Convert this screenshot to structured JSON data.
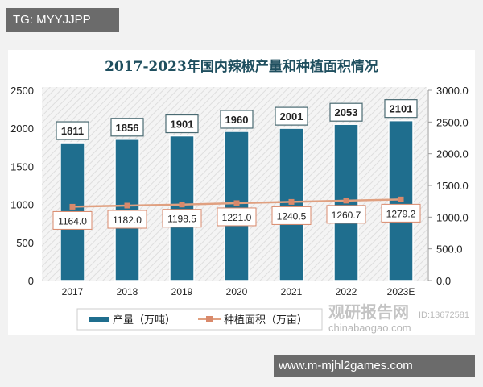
{
  "overlay": {
    "tag": "TG: MYYJJPP",
    "site": "www.m-mjhl2games.com"
  },
  "watermark": {
    "brand": "观研报告网",
    "domain": "chinabaogao.com",
    "id": "ID:13672581"
  },
  "colors": {
    "bar": "#1f6e8e",
    "line": "#e0a080",
    "marker": "#d9896b",
    "title": "#1f4f5f"
  },
  "chart_data": {
    "type": "bar",
    "title": "2017-2023年国内辣椒产量和种植面积情况",
    "categories": [
      "2017",
      "2018",
      "2019",
      "2020",
      "2021",
      "2022",
      "2023E"
    ],
    "series": [
      {
        "name": "产量（万吨）",
        "type": "bar",
        "axis": "left",
        "values": [
          1811,
          1856,
          1901,
          1960,
          2001,
          2053,
          2101
        ],
        "labels": [
          "1811",
          "1856",
          "1901",
          "1960",
          "2001",
          "2053",
          "2101"
        ]
      },
      {
        "name": "种植面积（万亩）",
        "type": "line",
        "axis": "right",
        "values": [
          1164.0,
          1182.0,
          1198.5,
          1221.0,
          1240.5,
          1260.7,
          1279.2
        ],
        "labels": [
          "1164.0",
          "1182.0",
          "1198.5",
          "1221.0",
          "1240.5",
          "1260.7",
          "1279.2"
        ]
      }
    ],
    "ylim_left": [
      0,
      2500
    ],
    "yticks_left": [
      "0",
      "500",
      "1000",
      "1500",
      "2000",
      "2500"
    ],
    "ylim_right": [
      0,
      3000
    ],
    "yticks_right": [
      "0.0",
      "500.0",
      "1000.0",
      "1500.0",
      "2000.0",
      "2500.0",
      "3000.0"
    ],
    "legend": "bottom",
    "grid": false
  }
}
